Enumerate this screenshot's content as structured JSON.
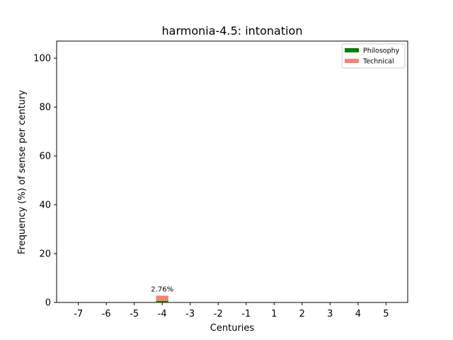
{
  "chart_data": {
    "type": "bar",
    "stacked": true,
    "title": "harmonia-4.5: intonation",
    "xlabel": "Centuries",
    "ylabel": "Frequency (%) of sense per century",
    "categories": [
      "-7",
      "-6",
      "-5",
      "-4",
      "-3",
      "-2",
      "-1",
      "1",
      "2",
      "3",
      "4",
      "5"
    ],
    "series": [
      {
        "name": "Philosophy",
        "color": "#008000",
        "values": [
          0,
          0,
          0,
          0.6,
          0,
          0,
          0,
          0,
          0,
          0,
          0,
          0
        ]
      },
      {
        "name": "Technical",
        "color": "#fa8072",
        "values": [
          0,
          0,
          0,
          2.16,
          0,
          0,
          0,
          0,
          0,
          0,
          0,
          0
        ]
      }
    ],
    "data_labels": [
      {
        "category": "-4",
        "text": "2.76%"
      }
    ],
    "ylim": [
      0,
      107
    ],
    "yticks": [
      "0",
      "20",
      "40",
      "60",
      "80",
      "100"
    ],
    "yticks_values": [
      0,
      20,
      40,
      60,
      80,
      100
    ],
    "legend_position": "top-right",
    "grid": false
  }
}
